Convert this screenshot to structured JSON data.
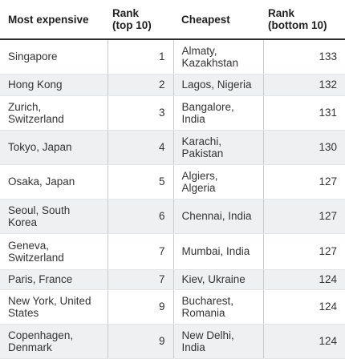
{
  "headers": {
    "most_expensive": "Most expensive",
    "rank_top": "Rank\n(top 10)",
    "cheapest": "Cheapest",
    "rank_bottom": "Rank\n(bottom 10)"
  },
  "rows": [
    {
      "expensive_city": "Singapore",
      "expensive_rank": "1",
      "cheap_city": "Almaty,\nKazakhstan",
      "cheap_rank": "133"
    },
    {
      "expensive_city": "Hong Kong",
      "expensive_rank": "2",
      "cheap_city": "Lagos, Nigeria",
      "cheap_rank": "132"
    },
    {
      "expensive_city": "Zurich,\nSwitzerland",
      "expensive_rank": "3",
      "cheap_city": "Bangalore,\nIndia",
      "cheap_rank": "131"
    },
    {
      "expensive_city": "Tokyo, Japan",
      "expensive_rank": "4",
      "cheap_city": "Karachi,\nPakistan",
      "cheap_rank": "130"
    },
    {
      "expensive_city": "Osaka, Japan",
      "expensive_rank": "5",
      "cheap_city": "Algiers,\nAlgeria",
      "cheap_rank": "127"
    },
    {
      "expensive_city": "Seoul, South\nKorea",
      "expensive_rank": "6",
      "cheap_city": "Chennai, India",
      "cheap_rank": "127"
    },
    {
      "expensive_city": "Geneva,\nSwitzerland",
      "expensive_rank": "7",
      "cheap_city": "Mumbai, India",
      "cheap_rank": "127"
    },
    {
      "expensive_city": "Paris, France",
      "expensive_rank": "7",
      "cheap_city": "Kiev, Ukraine",
      "cheap_rank": "124"
    },
    {
      "expensive_city": "New York, United\nStates",
      "expensive_rank": "9",
      "cheap_city": "Bucharest,\nRomania",
      "cheap_rank": "124"
    },
    {
      "expensive_city": "Copenhagen,\nDenmark",
      "expensive_rank": "9",
      "cheap_city": "New Delhi,\nIndia",
      "cheap_rank": "124"
    }
  ]
}
